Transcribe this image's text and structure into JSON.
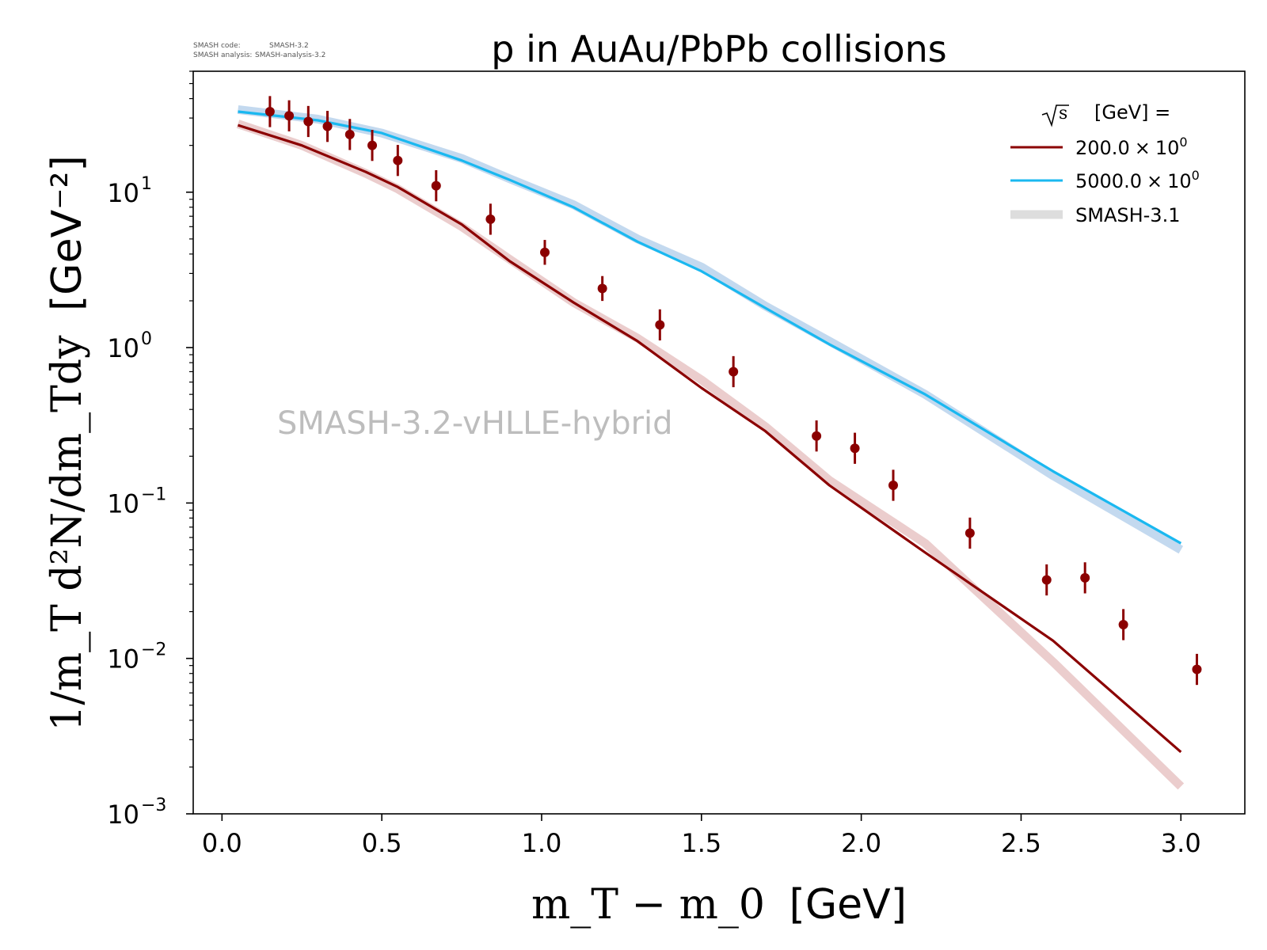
{
  "meta": {
    "code_label": "SMASH code:",
    "code_value": "SMASH-3.2",
    "analysis_label": "SMASH analysis:",
    "analysis_value": "SMASH-analysis-3.2"
  },
  "watermark": "SMASH-3.2-vHLLE-hybrid",
  "chart_data": {
    "type": "line",
    "title": "p in AuAu/PbPb collisions",
    "xlabel_main": "m_T − m_0",
    "xlabel_unit": "[GeV]",
    "ylabel_main": "1/m_T d²N/dm_Tdy",
    "ylabel_unit": "[GeV⁻²]",
    "yscale": "log",
    "xlim": [
      -0.09,
      3.2
    ],
    "ylim": [
      0.001,
      60
    ],
    "x_ticks": [
      "0.0",
      "0.5",
      "1.0",
      "1.5",
      "2.0",
      "2.5",
      "3.0"
    ],
    "y_tick_exponents": [
      "1",
      "0",
      "−1",
      "−2",
      "−3"
    ],
    "legend": {
      "title_unit": "[GeV] =",
      "placement": "top-right",
      "entries": [
        {
          "label": "200.0",
          "suffix_exp": "0",
          "color": "#8b0000"
        },
        {
          "label": "5000.0",
          "suffix_exp": "0",
          "color": "#1ab8f0"
        },
        {
          "label": "SMASH-3.1",
          "color": "#dddddd"
        }
      ]
    },
    "series": [
      {
        "name": "200.0",
        "color": "#8b0000",
        "x": [
          0.05,
          0.25,
          0.45,
          0.55,
          0.75,
          0.9,
          1.1,
          1.3,
          1.5,
          1.7,
          1.9,
          2.2,
          2.6,
          3.0
        ],
        "y": [
          27,
          20,
          13.5,
          10.8,
          6.2,
          3.6,
          1.95,
          1.1,
          0.55,
          0.29,
          0.13,
          0.048,
          0.013,
          0.0025
        ]
      },
      {
        "name": "5000.0",
        "color": "#1ab8f0",
        "x": [
          0.05,
          0.3,
          0.5,
          0.75,
          0.9,
          1.1,
          1.3,
          1.5,
          1.7,
          1.9,
          2.2,
          2.6,
          3.0
        ],
        "y": [
          33,
          29,
          24,
          16,
          12,
          8.0,
          4.8,
          3.1,
          1.8,
          1.05,
          0.5,
          0.16,
          0.055
        ]
      },
      {
        "name": "SMASH-3.1",
        "color": "#dddddd",
        "reference_for": "200.0",
        "band_color": "#e8c4c4",
        "x": [
          0.05,
          0.25,
          0.45,
          0.55,
          0.75,
          0.9,
          1.1,
          1.3,
          1.5,
          1.7,
          1.9,
          2.2,
          2.6,
          3.0
        ],
        "y": [
          27.5,
          20,
          13.2,
          10.5,
          6.0,
          3.7,
          1.95,
          1.15,
          0.62,
          0.31,
          0.14,
          0.055,
          0.0095,
          0.0015
        ]
      },
      {
        "name": "SMASH-3.1",
        "color": "#dddddd",
        "reference_for": "5000.0",
        "band_color": "#b9d2ec",
        "x": [
          0.05,
          0.3,
          0.5,
          0.75,
          0.9,
          1.1,
          1.3,
          1.5,
          1.7,
          1.9,
          2.2,
          2.6,
          3.0
        ],
        "y": [
          34,
          29.5,
          24,
          16.5,
          12.2,
          8.3,
          5.0,
          3.3,
          1.85,
          1.1,
          0.5,
          0.15,
          0.05
        ]
      },
      {
        "name": "",
        "type": "scatter",
        "color": "#8b0000",
        "x": [
          0.15,
          0.21,
          0.27,
          0.33,
          0.4,
          0.47,
          0.55,
          0.67,
          0.84,
          1.01,
          1.19,
          1.37,
          1.6,
          1.86,
          1.98,
          2.1,
          2.34,
          2.58,
          2.7,
          2.82,
          3.05
        ],
        "y": [
          33,
          31,
          28.5,
          26.5,
          23.5,
          20,
          16,
          11,
          6.7,
          4.1,
          2.4,
          1.4,
          0.7,
          0.27,
          0.225,
          0.13,
          0.064,
          0.032,
          0.033,
          0.0165,
          0.0085
        ],
        "err": [
          0.1,
          0.1,
          0.1,
          0.1,
          0.1,
          0.1,
          0.1,
          0.1,
          0.1,
          0.08,
          0.08,
          0.1,
          0.1,
          0.1,
          0.1,
          0.1,
          0.1,
          0.1,
          0.1,
          0.1,
          0.1
        ]
      }
    ]
  }
}
